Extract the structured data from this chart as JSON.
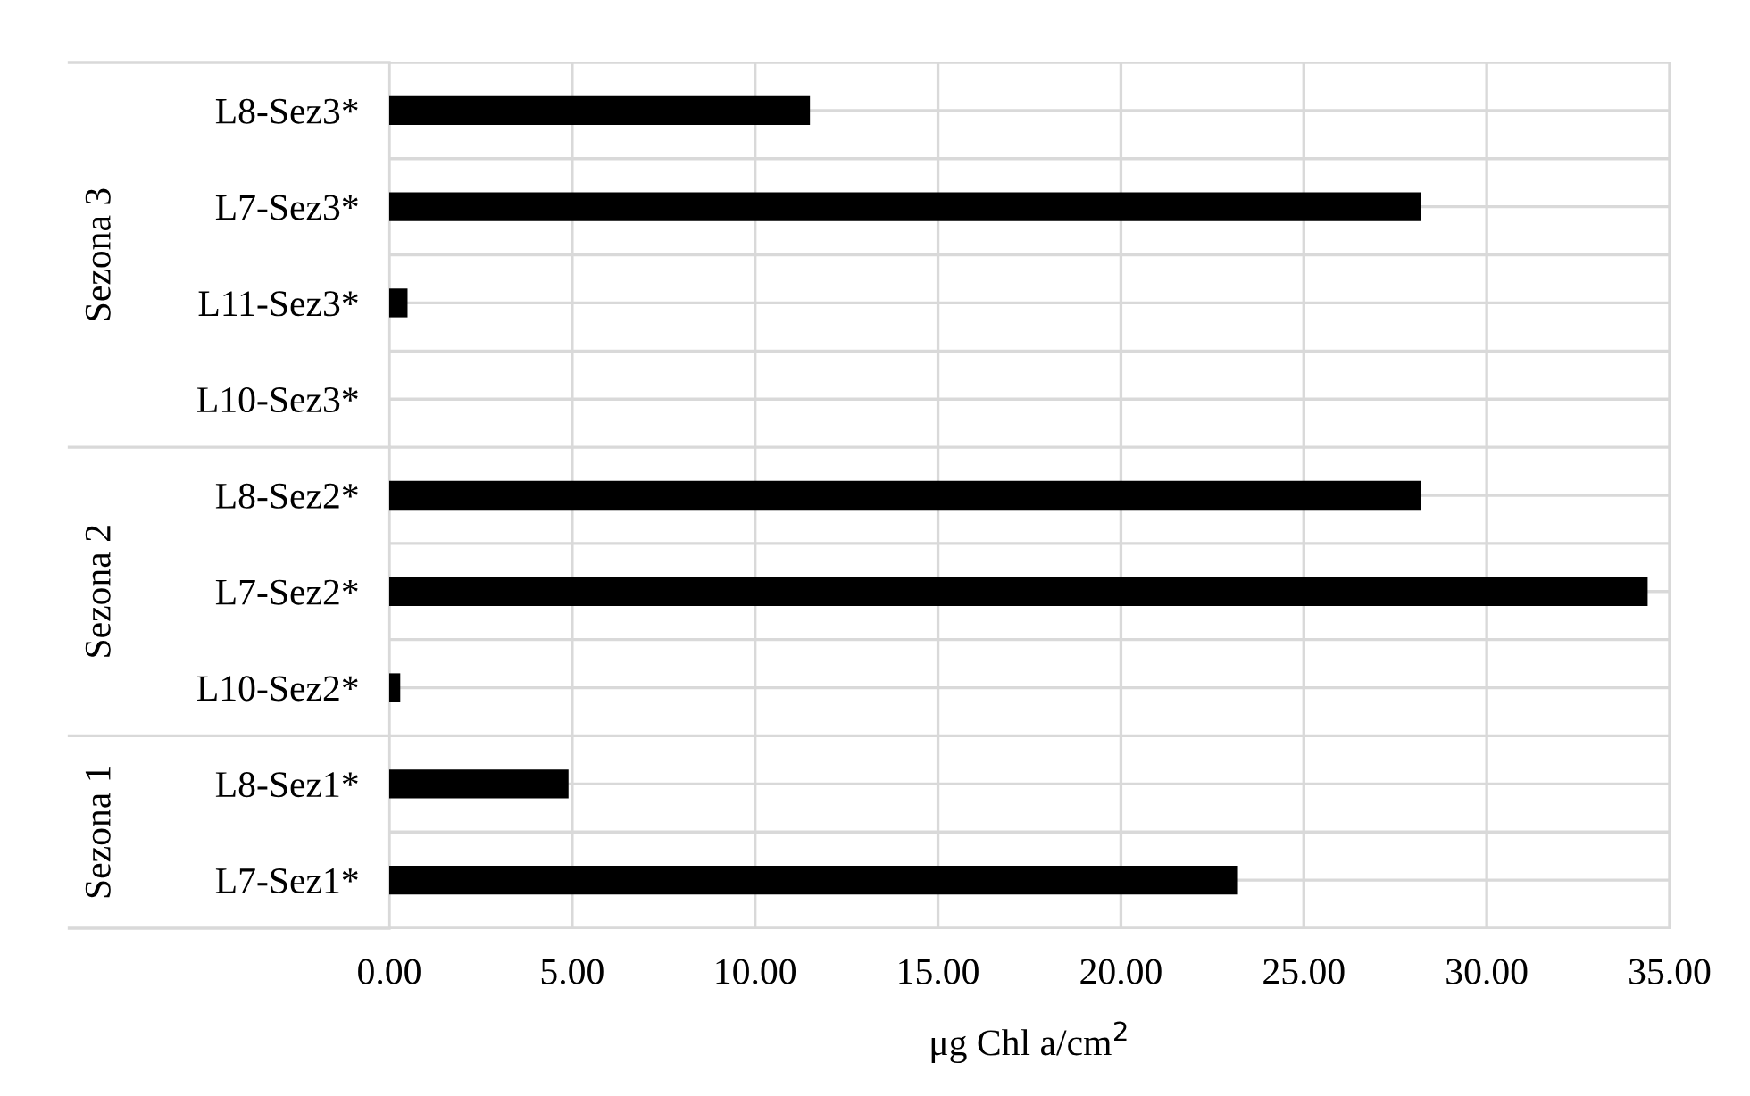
{
  "chart_data": {
    "type": "bar",
    "orientation": "horizontal",
    "xlabel": "μg Chl a/cm$^{2}$",
    "categories": [
      "L8-Sez3*",
      "L7-Sez3*",
      "L11-Sez3*",
      "L10-Sez3*",
      "L8-Sez2*",
      "L7-Sez2*",
      "L10-Sez2*",
      "L8-Sez1*",
      "L7-Sez1*"
    ],
    "values": [
      11.5,
      28.2,
      0.5,
      0,
      28.2,
      34.4,
      0.3,
      4.9,
      23.2
    ],
    "color": "#000000",
    "xlim": [
      0,
      35
    ],
    "xticks": [
      {
        "value": 0,
        "label": "0.00"
      },
      {
        "value": 5,
        "label": "5.00"
      },
      {
        "value": 10,
        "label": "10.00"
      },
      {
        "value": 15,
        "label": "15.00"
      },
      {
        "value": 20,
        "label": "20.00"
      },
      {
        "value": 25,
        "label": "25.00"
      },
      {
        "value": 30,
        "label": "30.00"
      },
      {
        "value": 35,
        "label": "35.00"
      }
    ],
    "annotations": [
      "Sezona 3",
      "Sezona 2",
      "Sezona 1"
    ],
    "grid": true,
    "legend": false
  }
}
